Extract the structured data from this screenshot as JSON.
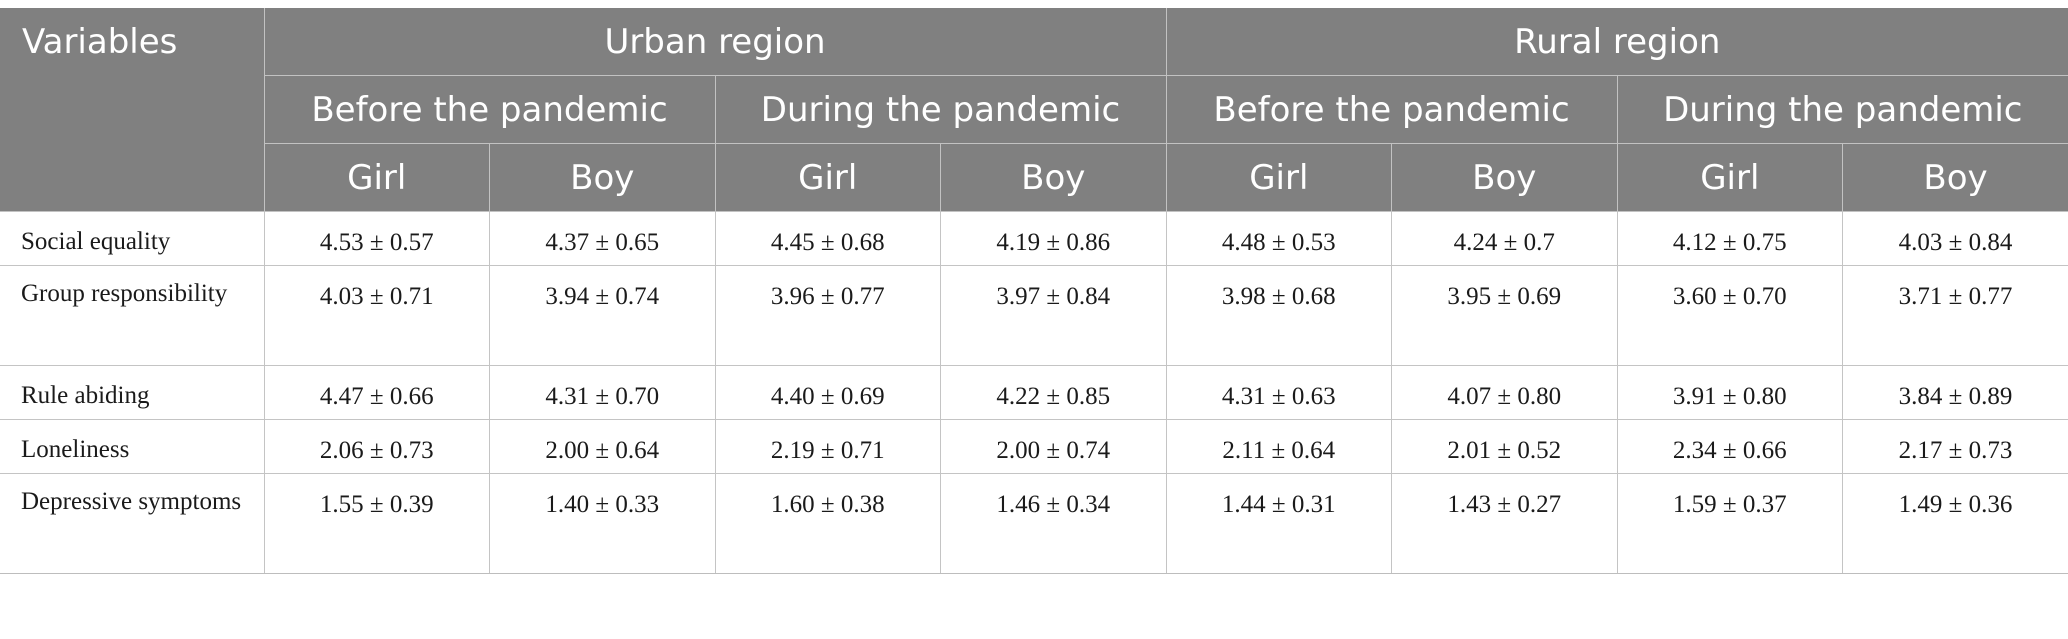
{
  "header": {
    "variables": "Variables",
    "regions": [
      "Urban region",
      "Rural region"
    ],
    "periods": [
      "Before the pandemic",
      "During the pandemic",
      "Before the pandemic",
      "During the pandemic"
    ],
    "sexes": [
      "Girl",
      "Boy",
      "Girl",
      "Boy",
      "Girl",
      "Boy",
      "Girl",
      "Boy"
    ]
  },
  "rows": [
    {
      "label": "Social equality",
      "values": [
        "4.53 ± 0.57",
        "4.37 ± 0.65",
        "4.45 ± 0.68",
        "4.19 ± 0.86",
        "4.48 ± 0.53",
        "4.24 ± 0.7",
        "4.12 ± 0.75",
        "4.03 ± 0.84"
      ]
    },
    {
      "label": "Group responsibility",
      "values": [
        "4.03 ± 0.71",
        "3.94 ± 0.74",
        "3.96 ± 0.77",
        "3.97 ± 0.84",
        "3.98 ± 0.68",
        "3.95 ± 0.69",
        "3.60 ± 0.70",
        "3.71 ± 0.77"
      ]
    },
    {
      "label": "Rule abiding",
      "values": [
        "4.47 ± 0.66",
        "4.31 ± 0.70",
        "4.40 ± 0.69",
        "4.22 ± 0.85",
        "4.31 ± 0.63",
        "4.07 ± 0.80",
        "3.91 ± 0.80",
        "3.84 ± 0.89"
      ]
    },
    {
      "label": "Loneliness",
      "values": [
        "2.06 ± 0.73",
        "2.00 ± 0.64",
        "2.19 ± 0.71",
        "2.00 ± 0.74",
        "2.11 ± 0.64",
        "2.01 ± 0.52",
        "2.34 ± 0.66",
        "2.17 ± 0.73"
      ]
    },
    {
      "label": "Depressive symptoms",
      "values": [
        "1.55 ± 0.39",
        "1.40 ± 0.33",
        "1.60 ± 0.38",
        "1.46 ± 0.34",
        "1.44 ± 0.31",
        "1.43 ± 0.27",
        "1.59 ± 0.37",
        "1.49 ± 0.36"
      ]
    }
  ],
  "colors": {
    "header_bg": "#808080",
    "header_text": "#ffffff",
    "grid": "#c4c4c4"
  }
}
